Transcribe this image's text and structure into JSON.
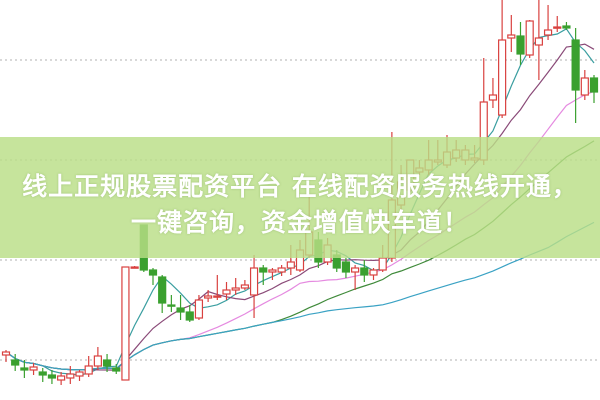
{
  "banner": {
    "line1": "线上正规股票配资平台 在线配资服务热线开通，",
    "line2": "一键咨询，资金增值快车道！"
  },
  "colors": {
    "up": "#d9413f",
    "down": "#3aa02f",
    "grid": "#b0b0b0",
    "banner": "#bade86"
  },
  "chart_data": {
    "type": "candlestick",
    "title": "",
    "grid": true,
    "gridlines": [
      34,
      24,
      14,
      4
    ],
    "ylim": [
      0,
      40
    ],
    "candles": [
      [
        4.5,
        4.8,
        5.0,
        3.8
      ],
      [
        4.0,
        3.5,
        4.6,
        2.9
      ],
      [
        3.2,
        3.0,
        4.0,
        2.2
      ],
      [
        3.0,
        3.3,
        3.7,
        2.5
      ],
      [
        2.8,
        2.5,
        3.2,
        1.8
      ],
      [
        2.5,
        2.2,
        3.0,
        1.6
      ],
      [
        2.0,
        2.4,
        2.8,
        1.5
      ],
      [
        2.2,
        2.6,
        3.4,
        1.6
      ],
      [
        2.4,
        2.8,
        3.0,
        1.9
      ],
      [
        2.6,
        3.4,
        4.4,
        2.3
      ],
      [
        3.4,
        4.4,
        5.3,
        3.0
      ],
      [
        4.0,
        3.4,
        4.6,
        2.8
      ],
      [
        3.2,
        2.9,
        3.6,
        2.6
      ],
      [
        2.0,
        13.3,
        13.3,
        2.0
      ],
      [
        13.3,
        13.3,
        13.4,
        13.2
      ],
      [
        17.5,
        13.0,
        17.5,
        12.8
      ],
      [
        13.0,
        12.5,
        13.2,
        11.5
      ],
      [
        12.3,
        9.7,
        12.5,
        8.7
      ],
      [
        9.5,
        9.4,
        10.5,
        8.8
      ],
      [
        9.2,
        8.8,
        10.5,
        8.0
      ],
      [
        8.8,
        8.0,
        9.5,
        7.8
      ],
      [
        8.2,
        10.0,
        10.5,
        8.0
      ],
      [
        10.2,
        10.4,
        11.0,
        9.8
      ],
      [
        10.4,
        10.4,
        12.5,
        10.0
      ],
      [
        10.6,
        11.0,
        11.8,
        10.0
      ],
      [
        11.0,
        11.2,
        12.2,
        10.5
      ],
      [
        11.2,
        11.5,
        12.0,
        11.0
      ],
      [
        10.5,
        13.2,
        14.5,
        8.2
      ],
      [
        13.2,
        12.8,
        13.5,
        11.5
      ],
      [
        12.8,
        13.0,
        13.2,
        12.0
      ],
      [
        12.8,
        13.2,
        13.5,
        12.4
      ],
      [
        13.2,
        13.8,
        15.5,
        12.5
      ],
      [
        13.0,
        15.0,
        16.0,
        12.8
      ],
      [
        14.5,
        16.8,
        20.5,
        14.2
      ],
      [
        16.0,
        13.8,
        16.8,
        13.2
      ],
      [
        13.8,
        15.5,
        16.2,
        13.5
      ],
      [
        14.5,
        13.2,
        15.0,
        12.8
      ],
      [
        13.8,
        12.8,
        14.2,
        12.2
      ],
      [
        12.8,
        13.2,
        13.5,
        11.0
      ],
      [
        13.2,
        12.5,
        14.0,
        11.8
      ],
      [
        12.5,
        13.0,
        13.2,
        12.0
      ],
      [
        13.0,
        14.2,
        15.5,
        12.8
      ],
      [
        14.2,
        20.0,
        26.8,
        13.8
      ],
      [
        19.5,
        21.8,
        23.5,
        19.0
      ],
      [
        21.0,
        24.0,
        24.0,
        20.8
      ],
      [
        22.8,
        23.2,
        24.0,
        22.5
      ],
      [
        23.0,
        24.0,
        26.0,
        22.5
      ],
      [
        23.8,
        24.0,
        26.0,
        23.5
      ],
      [
        23.5,
        24.8,
        26.5,
        23.2
      ],
      [
        24.2,
        25.0,
        26.0,
        23.8
      ],
      [
        24.0,
        25.0,
        25.5,
        23.5
      ],
      [
        24.0,
        24.2,
        25.5,
        23.7
      ],
      [
        24.0,
        29.8,
        34.2,
        23.5
      ],
      [
        30.0,
        30.5,
        32.2,
        29.2
      ],
      [
        28.5,
        36.0,
        40.0,
        28.2
      ],
      [
        36.2,
        36.5,
        38.5,
        34.8
      ],
      [
        36.4,
        34.6,
        37.8,
        33.5
      ],
      [
        34.5,
        37.9,
        38.0,
        34.2
      ],
      [
        35.5,
        36.2,
        40.0,
        32.0
      ],
      [
        36.5,
        37.0,
        39.5,
        36.0
      ],
      [
        37.2,
        37.3,
        38.4,
        36.8
      ],
      [
        37.4,
        37.2,
        37.8,
        37.0
      ],
      [
        36.0,
        31.0,
        37.2,
        27.7
      ],
      [
        30.5,
        32.2,
        33.0,
        30.0
      ],
      [
        32.2,
        30.8,
        32.5,
        29.7
      ]
    ],
    "candle_fields": [
      "open",
      "close",
      "high",
      "low"
    ],
    "moving_averages": [
      {
        "period": 5,
        "color": "#3a9ea0"
      },
      {
        "period": 10,
        "color": "#8a4a78"
      },
      {
        "period": 20,
        "color": "#e58ae0"
      },
      {
        "period": 30,
        "color": "#3f8a3a"
      },
      {
        "period": 60,
        "color": "#3aa2c4"
      }
    ]
  }
}
